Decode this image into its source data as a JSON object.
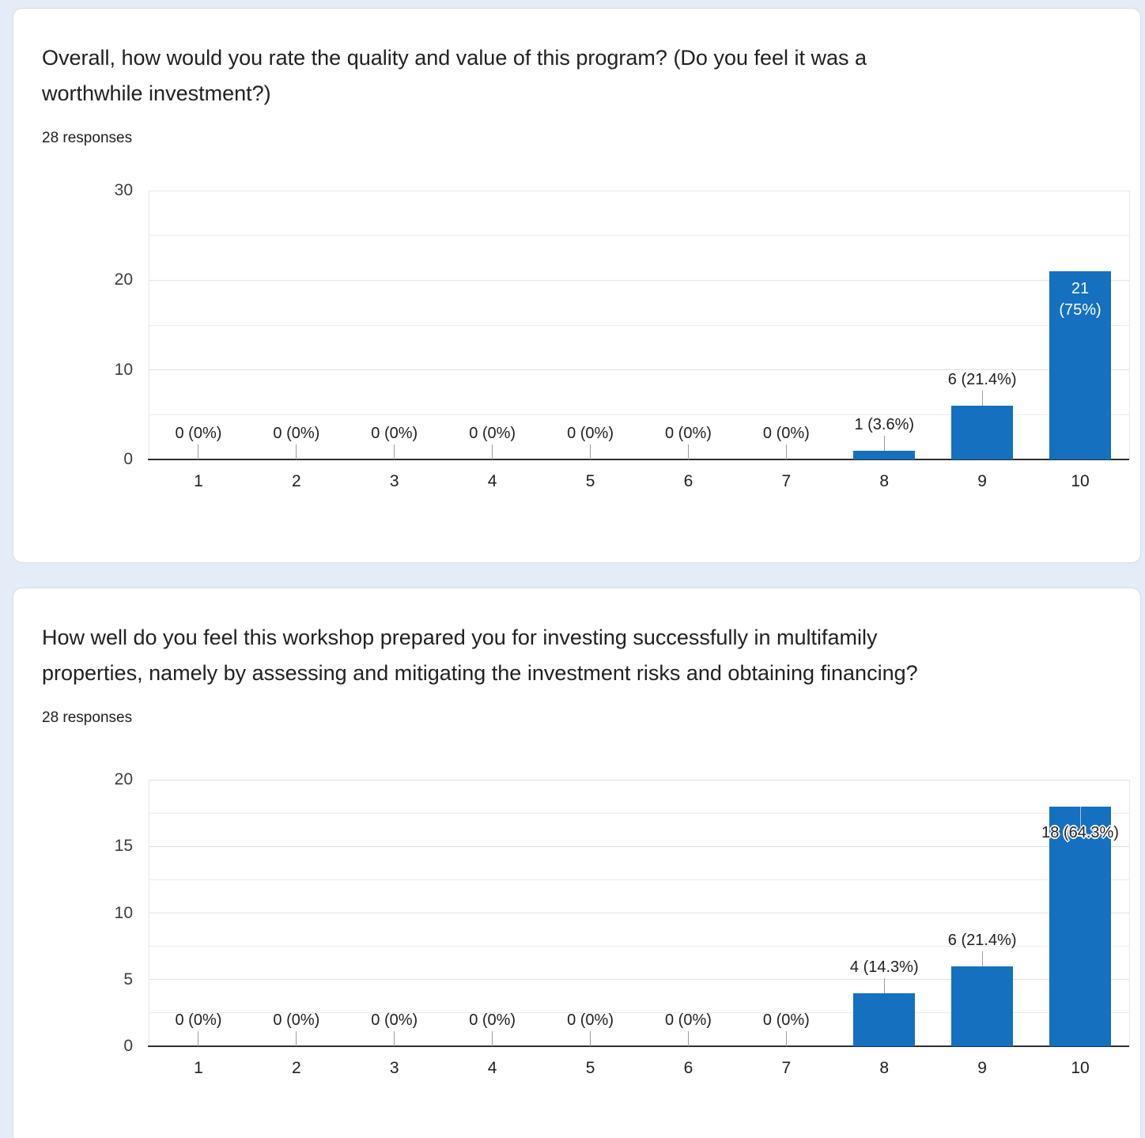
{
  "page": {
    "background_color": "#e3ecf7",
    "card_color": "#ffffff"
  },
  "cards": [
    {
      "title_line1": "Overall, how would you rate the quality and value of this program? (Do you feel it was a",
      "title_line2": "worthwhile investment?)",
      "responses_label": "28 responses"
    },
    {
      "title_line1": "How well do you feel this workshop prepared you for investing successfully in multifamily",
      "title_line2": "properties, namely by assessing and mitigating the investment risks and obtaining financing?",
      "responses_label": "28 responses"
    }
  ],
  "chart_data": [
    {
      "type": "bar",
      "title": "Overall, how would you rate the quality and value of this program? (Do you feel it was a worthwhile investment?)",
      "subtitle": "28 responses",
      "categories": [
        "1",
        "2",
        "3",
        "4",
        "5",
        "6",
        "7",
        "8",
        "9",
        "10"
      ],
      "values": [
        0,
        0,
        0,
        0,
        0,
        0,
        0,
        1,
        6,
        21
      ],
      "labels": [
        "0 (0%)",
        "0 (0%)",
        "0 (0%)",
        "0 (0%)",
        "0 (0%)",
        "0 (0%)",
        "0 (0%)",
        "1 (3.6%)",
        "6 (21.4%)",
        "21\n(75%)"
      ],
      "label_styles": [
        "outside",
        "outside",
        "outside",
        "outside",
        "outside",
        "outside",
        "outside",
        "outside",
        "outside",
        "inside-white"
      ],
      "xlabel": "",
      "ylabel": "",
      "ylim": [
        0,
        30
      ],
      "yticks": [
        0,
        10,
        20,
        30
      ],
      "grid_major": [
        10,
        20,
        30
      ],
      "grid_minor": [
        5,
        15,
        25
      ],
      "grid": "on",
      "legend": "none",
      "bar_color": "#1570bf"
    },
    {
      "type": "bar",
      "title": "How well do you feel this workshop prepared you for investing successfully in multifamily properties, namely by assessing and mitigating the investment risks and obtaining financing?",
      "subtitle": "28 responses",
      "categories": [
        "1",
        "2",
        "3",
        "4",
        "5",
        "6",
        "7",
        "8",
        "9",
        "10"
      ],
      "values": [
        0,
        0,
        0,
        0,
        0,
        0,
        0,
        4,
        6,
        18
      ],
      "labels": [
        "0 (0%)",
        "0 (0%)",
        "0 (0%)",
        "0 (0%)",
        "0 (0%)",
        "0 (0%)",
        "0 (0%)",
        "4 (14.3%)",
        "6 (21.4%)",
        "18 (64.3%)"
      ],
      "label_styles": [
        "outside",
        "outside",
        "outside",
        "outside",
        "outside",
        "outside",
        "outside",
        "outside",
        "outside",
        "overlay-halo"
      ],
      "xlabel": "",
      "ylabel": "",
      "ylim": [
        0,
        20
      ],
      "yticks": [
        0,
        5,
        10,
        15,
        20
      ],
      "grid_major": [
        5,
        10,
        15,
        20
      ],
      "grid_minor": [
        2.5,
        7.5,
        12.5,
        17.5
      ],
      "grid": "on",
      "legend": "none",
      "bar_color": "#1570bf"
    }
  ]
}
